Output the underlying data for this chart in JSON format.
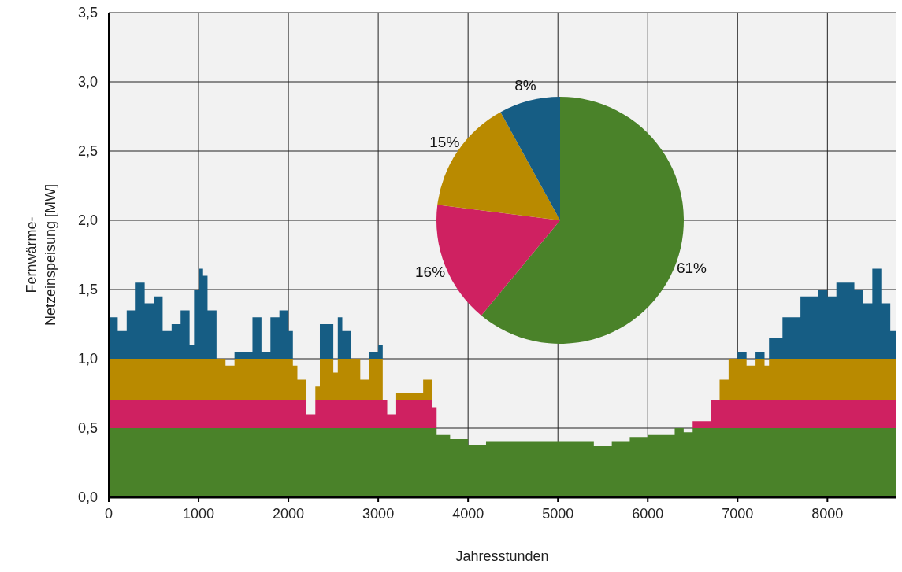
{
  "chart_data": [
    {
      "type": "area",
      "stacked": true,
      "xlabel": "Jahresstunden",
      "ylabel": "Fernwärme-Netzeinspeisung [MW]",
      "xlim": [
        0,
        8760
      ],
      "ylim": [
        0,
        3.5
      ],
      "xticks": [
        0,
        1000,
        2000,
        3000,
        4000,
        5000,
        6000,
        7000,
        8000
      ],
      "yticks": [
        {
          "value": 0,
          "label": "0,0"
        },
        {
          "value": 0.5,
          "label": "0,5"
        },
        {
          "value": 1,
          "label": "1,0"
        },
        {
          "value": 1.5,
          "label": "1,5"
        },
        {
          "value": 2,
          "label": "2,0"
        },
        {
          "value": 2.5,
          "label": "2,5"
        },
        {
          "value": 3,
          "label": "3,0"
        },
        {
          "value": 3.5,
          "label": "3,5"
        }
      ],
      "grid": true,
      "x": [
        0,
        100,
        200,
        300,
        400,
        500,
        600,
        700,
        800,
        900,
        950,
        1000,
        1050,
        1100,
        1200,
        1300,
        1400,
        1500,
        1600,
        1700,
        1800,
        1900,
        2000,
        2050,
        2100,
        2200,
        2300,
        2350,
        2400,
        2500,
        2550,
        2600,
        2700,
        2800,
        2900,
        3000,
        3050,
        3100,
        3200,
        3400,
        3500,
        3600,
        3650,
        3800,
        4000,
        4200,
        4500,
        4800,
        5000,
        5200,
        5400,
        5600,
        5800,
        6000,
        6200,
        6300,
        6400,
        6500,
        6600,
        6700,
        6800,
        6900,
        7000,
        7100,
        7200,
        7300,
        7350,
        7500,
        7700,
        7900,
        8000,
        8100,
        8300,
        8400,
        8500,
        8600,
        8700,
        8760
      ],
      "series": [
        {
          "color": "#4a8229",
          "values": [
            0.5,
            0.5,
            0.5,
            0.5,
            0.5,
            0.5,
            0.5,
            0.5,
            0.5,
            0.5,
            0.5,
            0.5,
            0.5,
            0.5,
            0.5,
            0.5,
            0.5,
            0.5,
            0.5,
            0.5,
            0.5,
            0.5,
            0.5,
            0.5,
            0.5,
            0.5,
            0.5,
            0.5,
            0.5,
            0.5,
            0.5,
            0.5,
            0.5,
            0.5,
            0.5,
            0.5,
            0.5,
            0.5,
            0.5,
            0.5,
            0.5,
            0.5,
            0.45,
            0.42,
            0.38,
            0.4,
            0.4,
            0.4,
            0.4,
            0.4,
            0.37,
            0.4,
            0.43,
            0.45,
            0.45,
            0.5,
            0.47,
            0.5,
            0.5,
            0.5,
            0.5,
            0.5,
            0.5,
            0.5,
            0.5,
            0.5,
            0.5,
            0.5,
            0.5,
            0.5,
            0.5,
            0.5,
            0.5,
            0.5,
            0.5,
            0.5,
            0.5,
            0.5
          ]
        },
        {
          "color": "#cf2161",
          "values": [
            0.2,
            0.2,
            0.2,
            0.2,
            0.2,
            0.2,
            0.2,
            0.2,
            0.2,
            0.2,
            0.2,
            0.2,
            0.2,
            0.2,
            0.2,
            0.2,
            0.2,
            0.2,
            0.2,
            0.2,
            0.2,
            0.2,
            0.2,
            0.2,
            0.2,
            0.1,
            0.2,
            0.2,
            0.2,
            0.2,
            0.2,
            0.2,
            0.2,
            0.2,
            0.2,
            0.2,
            0.2,
            0.1,
            0.2,
            0.2,
            0.2,
            0.15,
            0,
            0,
            0,
            0,
            0,
            0,
            0,
            0,
            0,
            0,
            0,
            0,
            0,
            0,
            0,
            0.05,
            0.05,
            0.2,
            0.2,
            0.2,
            0.2,
            0.2,
            0.2,
            0.2,
            0.2,
            0.2,
            0.2,
            0.2,
            0.2,
            0.2,
            0.2,
            0.2,
            0.2,
            0.2,
            0.2,
            0.2
          ]
        },
        {
          "color": "#b98a00",
          "values": [
            0.3,
            0.3,
            0.3,
            0.3,
            0.3,
            0.3,
            0.3,
            0.3,
            0.3,
            0.3,
            0.3,
            0.3,
            0.3,
            0.3,
            0.3,
            0.25,
            0.3,
            0.3,
            0.3,
            0.3,
            0.3,
            0.3,
            0.3,
            0.25,
            0.15,
            0,
            0.1,
            0.3,
            0.3,
            0.2,
            0.3,
            0.3,
            0.3,
            0.15,
            0.3,
            0.3,
            0,
            0,
            0.05,
            0.05,
            0.15,
            0,
            0,
            0,
            0,
            0,
            0,
            0,
            0,
            0,
            0,
            0,
            0,
            0,
            0,
            0,
            0,
            0,
            0,
            0,
            0.15,
            0.3,
            0.3,
            0.25,
            0.3,
            0.25,
            0.3,
            0.3,
            0.3,
            0.3,
            0.3,
            0.3,
            0.3,
            0.3,
            0.3,
            0.3,
            0.3,
            0.3
          ]
        },
        {
          "color": "#165d84",
          "values": [
            0.3,
            0.2,
            0.35,
            0.55,
            0.4,
            0.45,
            0.2,
            0.25,
            0.35,
            0.1,
            0.5,
            0.65,
            0.6,
            0.35,
            0,
            0,
            0.05,
            0.05,
            0.3,
            0.05,
            0.3,
            0.35,
            0.2,
            0,
            0,
            0,
            0,
            0.25,
            0.25,
            0,
            0.3,
            0.2,
            0,
            0,
            0.05,
            0.1,
            0,
            0,
            0,
            0,
            0,
            0,
            0,
            0,
            0,
            0,
            0,
            0,
            0,
            0,
            0,
            0,
            0,
            0,
            0,
            0,
            0,
            0,
            0,
            0,
            0,
            0,
            0.05,
            0,
            0.05,
            0,
            0.15,
            0.3,
            0.45,
            0.5,
            0.45,
            0.55,
            0.5,
            0.4,
            0.65,
            0.4,
            0.2,
            0.1
          ]
        }
      ]
    },
    {
      "type": "pie",
      "categories": [
        null,
        null,
        null,
        null
      ],
      "values": [
        61,
        16,
        15,
        8
      ],
      "colors": [
        "#4a8229",
        "#cf2161",
        "#b98a00",
        "#165d84"
      ],
      "value_labels": [
        "61%",
        "16%",
        "15%",
        "8%"
      ]
    }
  ]
}
